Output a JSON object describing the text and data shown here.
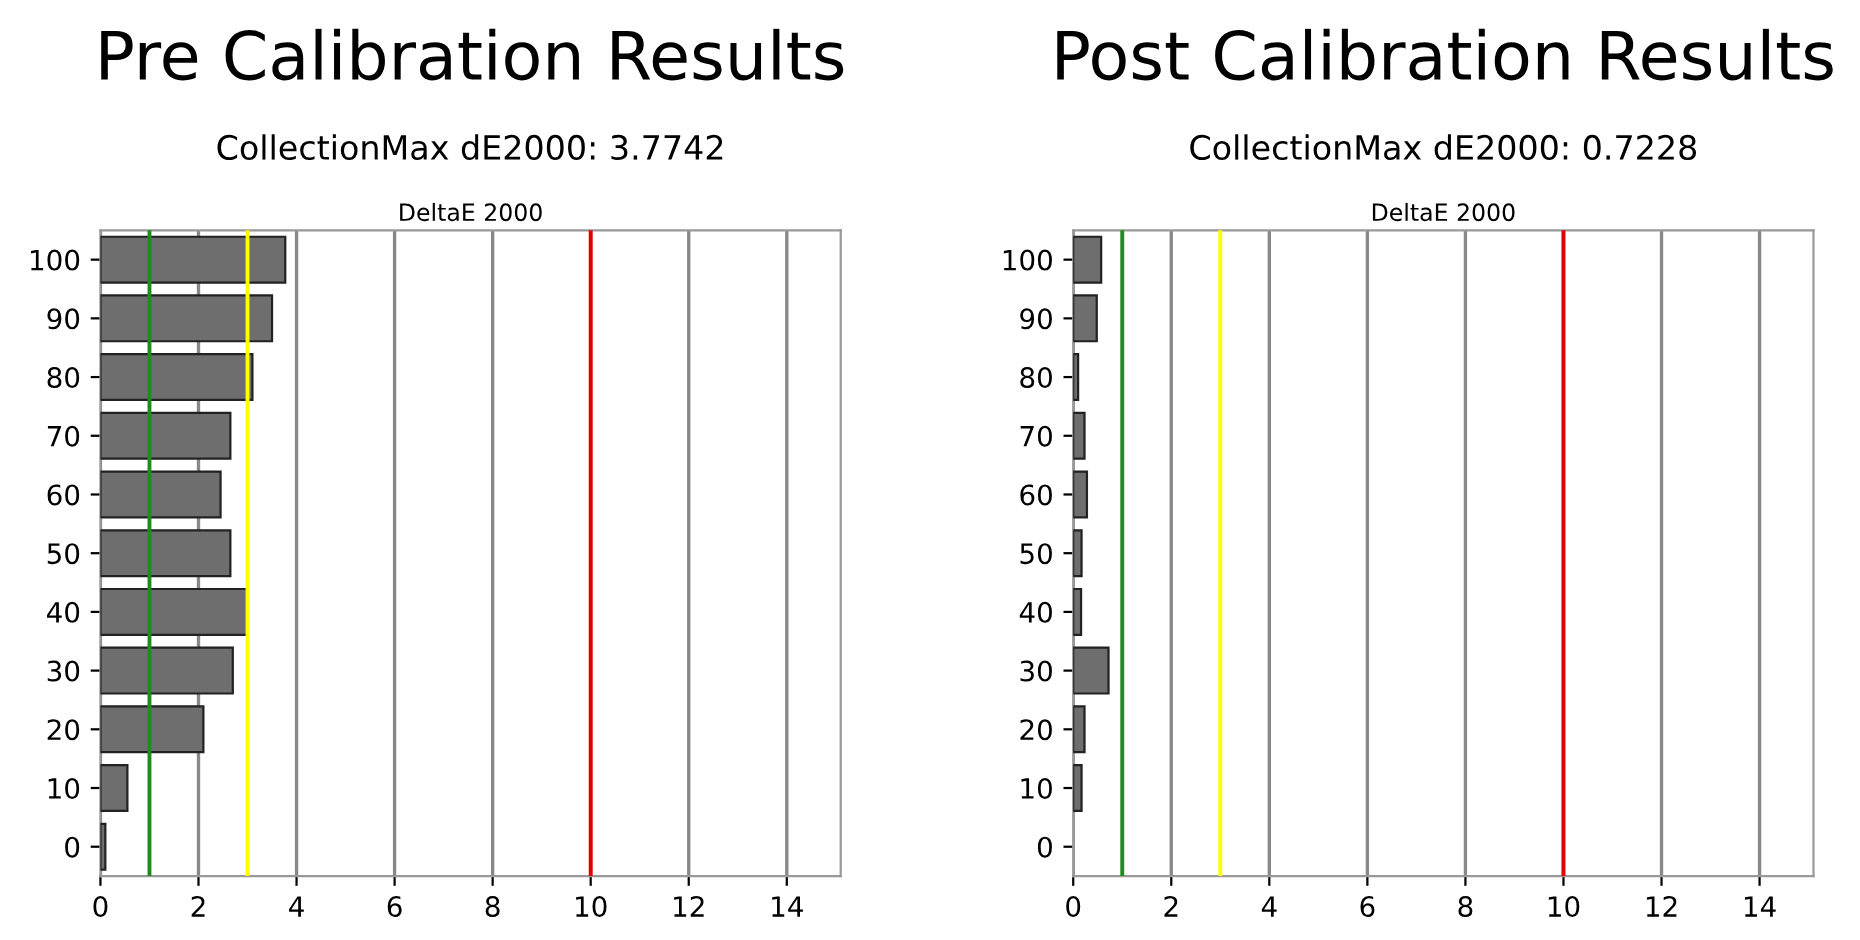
{
  "chart_data": [
    {
      "type": "bar",
      "orientation": "horizontal",
      "title": "Pre Calibration Results",
      "subtitle": "CollectionMax dE2000: 3.7742",
      "annotations": [
        "DeltaE 2000"
      ],
      "categories": [
        "100",
        "90",
        "80",
        "70",
        "60",
        "50",
        "40",
        "30",
        "20",
        "10",
        "0"
      ],
      "values": [
        3.77,
        3.5,
        3.1,
        2.65,
        2.45,
        2.65,
        3.0,
        2.7,
        2.1,
        0.55,
        0.1
      ],
      "color": "#6e6e6e",
      "xlim": [
        0,
        15.1
      ],
      "xticks": [
        0,
        2,
        4,
        6,
        8,
        10,
        12,
        14
      ],
      "grid": "x",
      "ref_lines": [
        {
          "axis": "x",
          "value": 1,
          "color": "#1e8c1e"
        },
        {
          "axis": "x",
          "value": 3,
          "color": "#ffff00"
        },
        {
          "axis": "x",
          "value": 10,
          "color": "#e00000"
        }
      ]
    },
    {
      "type": "bar",
      "orientation": "horizontal",
      "title": "Post Calibration Results",
      "subtitle": "CollectionMax dE2000: 0.7228",
      "annotations": [
        "DeltaE 2000"
      ],
      "categories": [
        "100",
        "90",
        "80",
        "70",
        "60",
        "50",
        "40",
        "30",
        "20",
        "10",
        "0"
      ],
      "values": [
        0.57,
        0.48,
        0.1,
        0.23,
        0.28,
        0.17,
        0.16,
        0.72,
        0.23,
        0.17,
        null
      ],
      "color": "#6e6e6e",
      "xlim": [
        0,
        15.1
      ],
      "xticks": [
        0,
        2,
        4,
        6,
        8,
        10,
        12,
        14
      ],
      "grid": "x",
      "ref_lines": [
        {
          "axis": "x",
          "value": 1,
          "color": "#1e8c1e"
        },
        {
          "axis": "x",
          "value": 3,
          "color": "#ffff00"
        },
        {
          "axis": "x",
          "value": 10,
          "color": "#e00000"
        }
      ]
    }
  ]
}
